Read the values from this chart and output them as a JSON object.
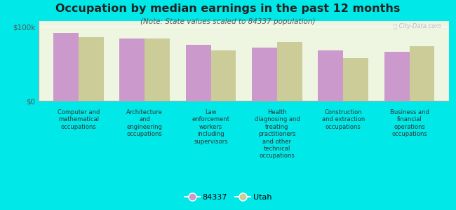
{
  "title": "Occupation by median earnings in the past 12 months",
  "subtitle": "(Note: State values scaled to 84337 population)",
  "categories": [
    "Computer and\nmathematical\noccupations",
    "Architecture\nand\nengineering\noccupations",
    "Law\nenforcement\nworkers\nincluding\nsupervisors",
    "Health\ndiagnosing and\ntreating\npractitioners\nand other\ntechnical\noccupations",
    "Construction\nand extraction\noccupations",
    "Business and\nfinancial\noperations\noccupations"
  ],
  "values_84337": [
    92000,
    84000,
    76000,
    72000,
    68000,
    66000
  ],
  "values_utah": [
    86000,
    84000,
    68000,
    80000,
    58000,
    74000
  ],
  "color_84337": "#cc99cc",
  "color_utah": "#cccc99",
  "background_outer": "#00e8e8",
  "background_plot": "#eef5e0",
  "yticks": [
    0,
    100000
  ],
  "ytick_labels": [
    "$0",
    "$100k"
  ],
  "legend_labels": [
    "84337",
    "Utah"
  ],
  "watermark": "Ⓜ City-Data.com"
}
